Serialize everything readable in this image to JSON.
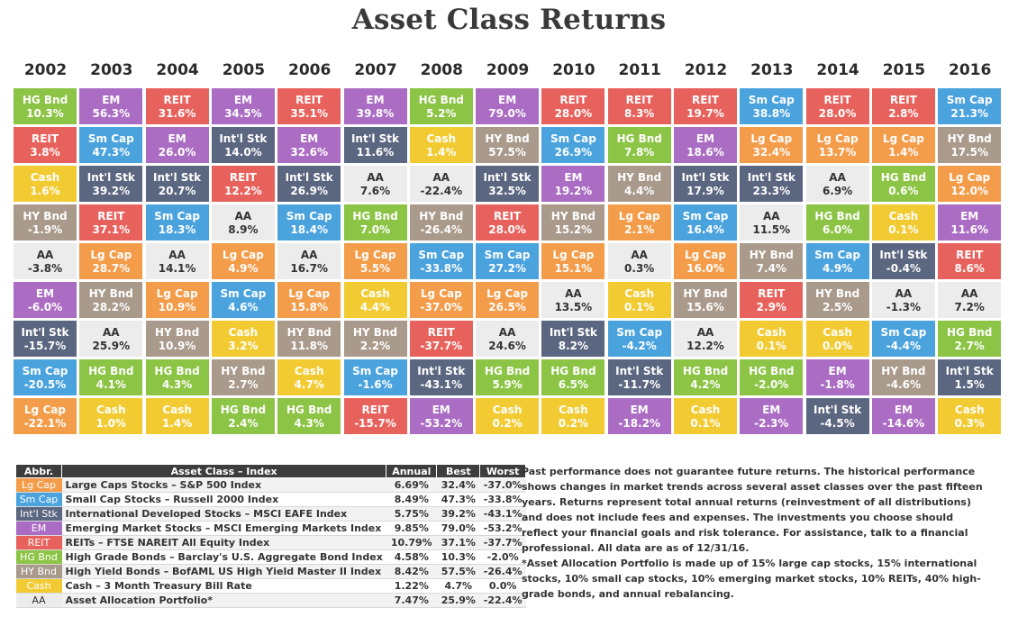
{
  "title": "Asset Class Returns",
  "colors": {
    "Lg Cap": "#f39c4a",
    "Sm Cap": "#4ba3de",
    "Int'l Stk": "#5b6680",
    "EM": "#ab6dc3",
    "REIT": "#e8625d",
    "HG Bnd": "#8cc445",
    "HY Bnd": "#a99a8b",
    "Cash": "#f2cb33",
    "AA": "#ececec"
  },
  "chart_data": {
    "type": "table",
    "title": "Asset Class Returns",
    "years": [
      "2002",
      "2003",
      "2004",
      "2005",
      "2006",
      "2007",
      "2008",
      "2009",
      "2010",
      "2011",
      "2012",
      "2013",
      "2014",
      "2015",
      "2016"
    ],
    "columns": [
      [
        [
          "HG Bnd",
          "10.3%"
        ],
        [
          "REIT",
          "3.8%"
        ],
        [
          "Cash",
          "1.6%"
        ],
        [
          "HY Bnd",
          "-1.9%"
        ],
        [
          "AA",
          "-3.8%"
        ],
        [
          "EM",
          "-6.0%"
        ],
        [
          "Int'l Stk",
          "-15.7%"
        ],
        [
          "Sm Cap",
          "-20.5%"
        ],
        [
          "Lg Cap",
          "-22.1%"
        ]
      ],
      [
        [
          "EM",
          "56.3%"
        ],
        [
          "Sm Cap",
          "47.3%"
        ],
        [
          "Int'l Stk",
          "39.2%"
        ],
        [
          "REIT",
          "37.1%"
        ],
        [
          "Lg Cap",
          "28.7%"
        ],
        [
          "HY Bnd",
          "28.2%"
        ],
        [
          "AA",
          "25.9%"
        ],
        [
          "HG Bnd",
          "4.1%"
        ],
        [
          "Cash",
          "1.0%"
        ]
      ],
      [
        [
          "REIT",
          "31.6%"
        ],
        [
          "EM",
          "26.0%"
        ],
        [
          "Int'l Stk",
          "20.7%"
        ],
        [
          "Sm Cap",
          "18.3%"
        ],
        [
          "AA",
          "14.1%"
        ],
        [
          "Lg Cap",
          "10.9%"
        ],
        [
          "HY Bnd",
          "10.9%"
        ],
        [
          "HG Bnd",
          "4.3%"
        ],
        [
          "Cash",
          "1.4%"
        ]
      ],
      [
        [
          "EM",
          "34.5%"
        ],
        [
          "Int'l Stk",
          "14.0%"
        ],
        [
          "REIT",
          "12.2%"
        ],
        [
          "AA",
          "8.9%"
        ],
        [
          "Lg Cap",
          "4.9%"
        ],
        [
          "Sm Cap",
          "4.6%"
        ],
        [
          "Cash",
          "3.2%"
        ],
        [
          "HY Bnd",
          "2.7%"
        ],
        [
          "HG Bnd",
          "2.4%"
        ]
      ],
      [
        [
          "REIT",
          "35.1%"
        ],
        [
          "EM",
          "32.6%"
        ],
        [
          "Int'l Stk",
          "26.9%"
        ],
        [
          "Sm Cap",
          "18.4%"
        ],
        [
          "AA",
          "16.7%"
        ],
        [
          "Lg Cap",
          "15.8%"
        ],
        [
          "HY Bnd",
          "11.8%"
        ],
        [
          "Cash",
          "4.7%"
        ],
        [
          "HG Bnd",
          "4.3%"
        ]
      ],
      [
        [
          "EM",
          "39.8%"
        ],
        [
          "Int'l Stk",
          "11.6%"
        ],
        [
          "AA",
          "7.6%"
        ],
        [
          "HG Bnd",
          "7.0%"
        ],
        [
          "Lg Cap",
          "5.5%"
        ],
        [
          "Cash",
          "4.4%"
        ],
        [
          "HY Bnd",
          "2.2%"
        ],
        [
          "Sm Cap",
          "-1.6%"
        ],
        [
          "REIT",
          "-15.7%"
        ]
      ],
      [
        [
          "HG Bnd",
          "5.2%"
        ],
        [
          "Cash",
          "1.4%"
        ],
        [
          "AA",
          "-22.4%"
        ],
        [
          "HY Bnd",
          "-26.4%"
        ],
        [
          "Sm Cap",
          "-33.8%"
        ],
        [
          "Lg Cap",
          "-37.0%"
        ],
        [
          "REIT",
          "-37.7%"
        ],
        [
          "Int'l Stk",
          "-43.1%"
        ],
        [
          "EM",
          "-53.2%"
        ]
      ],
      [
        [
          "EM",
          "79.0%"
        ],
        [
          "HY Bnd",
          "57.5%"
        ],
        [
          "Int'l Stk",
          "32.5%"
        ],
        [
          "REIT",
          "28.0%"
        ],
        [
          "Sm Cap",
          "27.2%"
        ],
        [
          "Lg Cap",
          "26.5%"
        ],
        [
          "AA",
          "24.6%"
        ],
        [
          "HG Bnd",
          "5.9%"
        ],
        [
          "Cash",
          "0.2%"
        ]
      ],
      [
        [
          "REIT",
          "28.0%"
        ],
        [
          "Sm Cap",
          "26.9%"
        ],
        [
          "EM",
          "19.2%"
        ],
        [
          "HY Bnd",
          "15.2%"
        ],
        [
          "Lg Cap",
          "15.1%"
        ],
        [
          "AA",
          "13.5%"
        ],
        [
          "Int'l Stk",
          "8.2%"
        ],
        [
          "HG Bnd",
          "6.5%"
        ],
        [
          "Cash",
          "0.2%"
        ]
      ],
      [
        [
          "REIT",
          "8.3%"
        ],
        [
          "HG Bnd",
          "7.8%"
        ],
        [
          "HY Bnd",
          "4.4%"
        ],
        [
          "Lg Cap",
          "2.1%"
        ],
        [
          "AA",
          "0.3%"
        ],
        [
          "Cash",
          "0.1%"
        ],
        [
          "Sm Cap",
          "-4.2%"
        ],
        [
          "Int'l Stk",
          "-11.7%"
        ],
        [
          "EM",
          "-18.2%"
        ]
      ],
      [
        [
          "REIT",
          "19.7%"
        ],
        [
          "EM",
          "18.6%"
        ],
        [
          "Int'l Stk",
          "17.9%"
        ],
        [
          "Sm Cap",
          "16.4%"
        ],
        [
          "Lg Cap",
          "16.0%"
        ],
        [
          "HY Bnd",
          "15.6%"
        ],
        [
          "AA",
          "12.2%"
        ],
        [
          "HG Bnd",
          "4.2%"
        ],
        [
          "Cash",
          "0.1%"
        ]
      ],
      [
        [
          "Sm Cap",
          "38.8%"
        ],
        [
          "Lg Cap",
          "32.4%"
        ],
        [
          "Int'l Stk",
          "23.3%"
        ],
        [
          "AA",
          "11.5%"
        ],
        [
          "HY Bnd",
          "7.4%"
        ],
        [
          "REIT",
          "2.9%"
        ],
        [
          "Cash",
          "0.1%"
        ],
        [
          "HG Bnd",
          "-2.0%"
        ],
        [
          "EM",
          "-2.3%"
        ]
      ],
      [
        [
          "REIT",
          "28.0%"
        ],
        [
          "Lg Cap",
          "13.7%"
        ],
        [
          "AA",
          "6.9%"
        ],
        [
          "HG Bnd",
          "6.0%"
        ],
        [
          "Sm Cap",
          "4.9%"
        ],
        [
          "HY Bnd",
          "2.5%"
        ],
        [
          "Cash",
          "0.0%"
        ],
        [
          "EM",
          "-1.8%"
        ],
        [
          "Int'l Stk",
          "-4.5%"
        ]
      ],
      [
        [
          "REIT",
          "2.8%"
        ],
        [
          "Lg Cap",
          "1.4%"
        ],
        [
          "HG Bnd",
          "0.6%"
        ],
        [
          "Cash",
          "0.1%"
        ],
        [
          "Int'l Stk",
          "-0.4%"
        ],
        [
          "AA",
          "-1.3%"
        ],
        [
          "Sm Cap",
          "-4.4%"
        ],
        [
          "HY Bnd",
          "-4.6%"
        ],
        [
          "EM",
          "-14.6%"
        ]
      ],
      [
        [
          "Sm Cap",
          "21.3%"
        ],
        [
          "HY Bnd",
          "17.5%"
        ],
        [
          "Lg Cap",
          "12.0%"
        ],
        [
          "EM",
          "11.6%"
        ],
        [
          "REIT",
          "8.6%"
        ],
        [
          "AA",
          "7.2%"
        ],
        [
          "HG Bnd",
          "2.7%"
        ],
        [
          "Int'l Stk",
          "1.5%"
        ],
        [
          "Cash",
          "0.3%"
        ]
      ]
    ]
  },
  "legend": {
    "headers": [
      "Abbr.",
      "Asset Class – Index",
      "Annual",
      "Best",
      "Worst"
    ],
    "rows": [
      {
        "abbr": "Lg Cap",
        "name": "Large Caps Stocks – S&P 500 Index",
        "annual": "6.69%",
        "best": "32.4%",
        "worst": "-37.0%"
      },
      {
        "abbr": "Sm Cap",
        "name": "Small Cap Stocks – Russell 2000 Index",
        "annual": "8.49%",
        "best": "47.3%",
        "worst": "-33.8%"
      },
      {
        "abbr": "Int'l Stk",
        "name": "International Developed Stocks – MSCI EAFE Index",
        "annual": "5.75%",
        "best": "39.2%",
        "worst": "-43.1%"
      },
      {
        "abbr": "EM",
        "name": "Emerging Market Stocks – MSCI Emerging Markets Index",
        "annual": "9.85%",
        "best": "79.0%",
        "worst": "-53.2%"
      },
      {
        "abbr": "REIT",
        "name": "REITs – FTSE NAREIT All Equity Index",
        "annual": "10.79%",
        "best": "37.1%",
        "worst": "-37.7%"
      },
      {
        "abbr": "HG Bnd",
        "name": "High Grade Bonds – Barclay's U.S. Aggregate Bond Index",
        "annual": "4.58%",
        "best": "10.3%",
        "worst": "-2.0%"
      },
      {
        "abbr": "HY Bnd",
        "name": "High Yield Bonds – BofAML US High Yield Master II Index",
        "annual": "8.42%",
        "best": "57.5%",
        "worst": "-26.4%"
      },
      {
        "abbr": "Cash",
        "name": "Cash – 3 Month Treasury Bill Rate",
        "annual": "1.22%",
        "best": "4.7%",
        "worst": "0.0%"
      },
      {
        "abbr": "AA",
        "name": "Asset Allocation Portfolio*",
        "annual": "7.47%",
        "best": "25.9%",
        "worst": "-22.4%"
      }
    ]
  },
  "disclaimer": "Past performance does not guarantee future returns. The historical performance shows changes in market trends across several asset classes over the past fifteen years. Returns represent total annual returns (reinvestment of all distributions) and does not include fees and expenses. The investments you choose should reflect your financial goals and risk tolerance. For assistance, talk to a financial professional. All data are as of 12/31/16.",
  "footnote": "*Asset Allocation Portfolio is made up of 15% large cap stocks, 15% international stocks, 10% small cap stocks, 10% emerging market stocks, 10% REITs, 40% high-grade bonds, and annual rebalancing."
}
